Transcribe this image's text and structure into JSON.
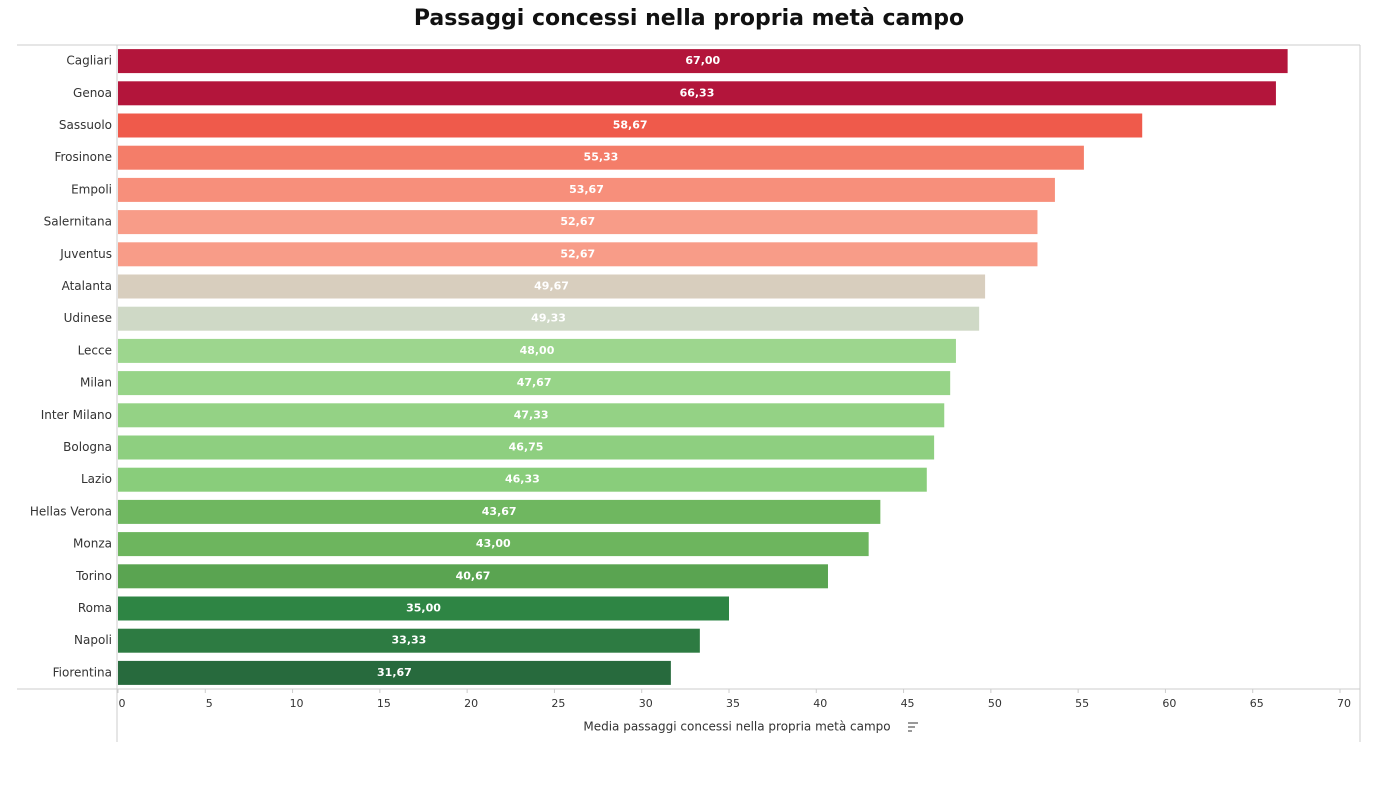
{
  "chart_data": {
    "type": "bar",
    "orientation": "horizontal",
    "title": "Passaggi concessi nella propria metà campo",
    "x_label": "Media passaggi concessi nella propria metà campo",
    "categories": [
      "Cagliari",
      "Genoa",
      "Sassuolo",
      "Frosinone",
      "Empoli",
      "Salernitana",
      "Juventus",
      "Atalanta",
      "Udinese",
      "Lecce",
      "Milan",
      "Inter Milano",
      "Bologna",
      "Lazio",
      "Hellas Verona",
      "Monza",
      "Torino",
      "Roma",
      "Napoli",
      "Fiorentina"
    ],
    "values": [
      67.0,
      66.33,
      58.67,
      55.33,
      53.67,
      52.67,
      52.67,
      49.67,
      49.33,
      48.0,
      47.67,
      47.33,
      46.75,
      46.33,
      43.67,
      43.0,
      40.67,
      35.0,
      33.33,
      31.67
    ],
    "value_labels": [
      "67,00",
      "66,33",
      "58,67",
      "55,33",
      "53,67",
      "52,67",
      "52,67",
      "49,67",
      "49,33",
      "48,00",
      "47,67",
      "47,33",
      "46,75",
      "46,33",
      "43,67",
      "43,00",
      "40,67",
      "35,00",
      "33,33",
      "31,67"
    ],
    "colors": [
      "#b3153b",
      "#b3153b",
      "#ef5a4b",
      "#f47d69",
      "#f78f7b",
      "#f89c88",
      "#f89c88",
      "#d8cebe",
      "#cfd9c6",
      "#9dd68e",
      "#97d488",
      "#94d285",
      "#8ecf80",
      "#89cd7b",
      "#6fb760",
      "#6db55e",
      "#5aa451",
      "#2e8544",
      "#2d7b42",
      "#276a3d"
    ],
    "xlim": [
      0,
      70
    ],
    "xticks": [
      0,
      5,
      10,
      15,
      20,
      25,
      30,
      35,
      40,
      45,
      50,
      55,
      60,
      65,
      70
    ],
    "grid": false
  }
}
